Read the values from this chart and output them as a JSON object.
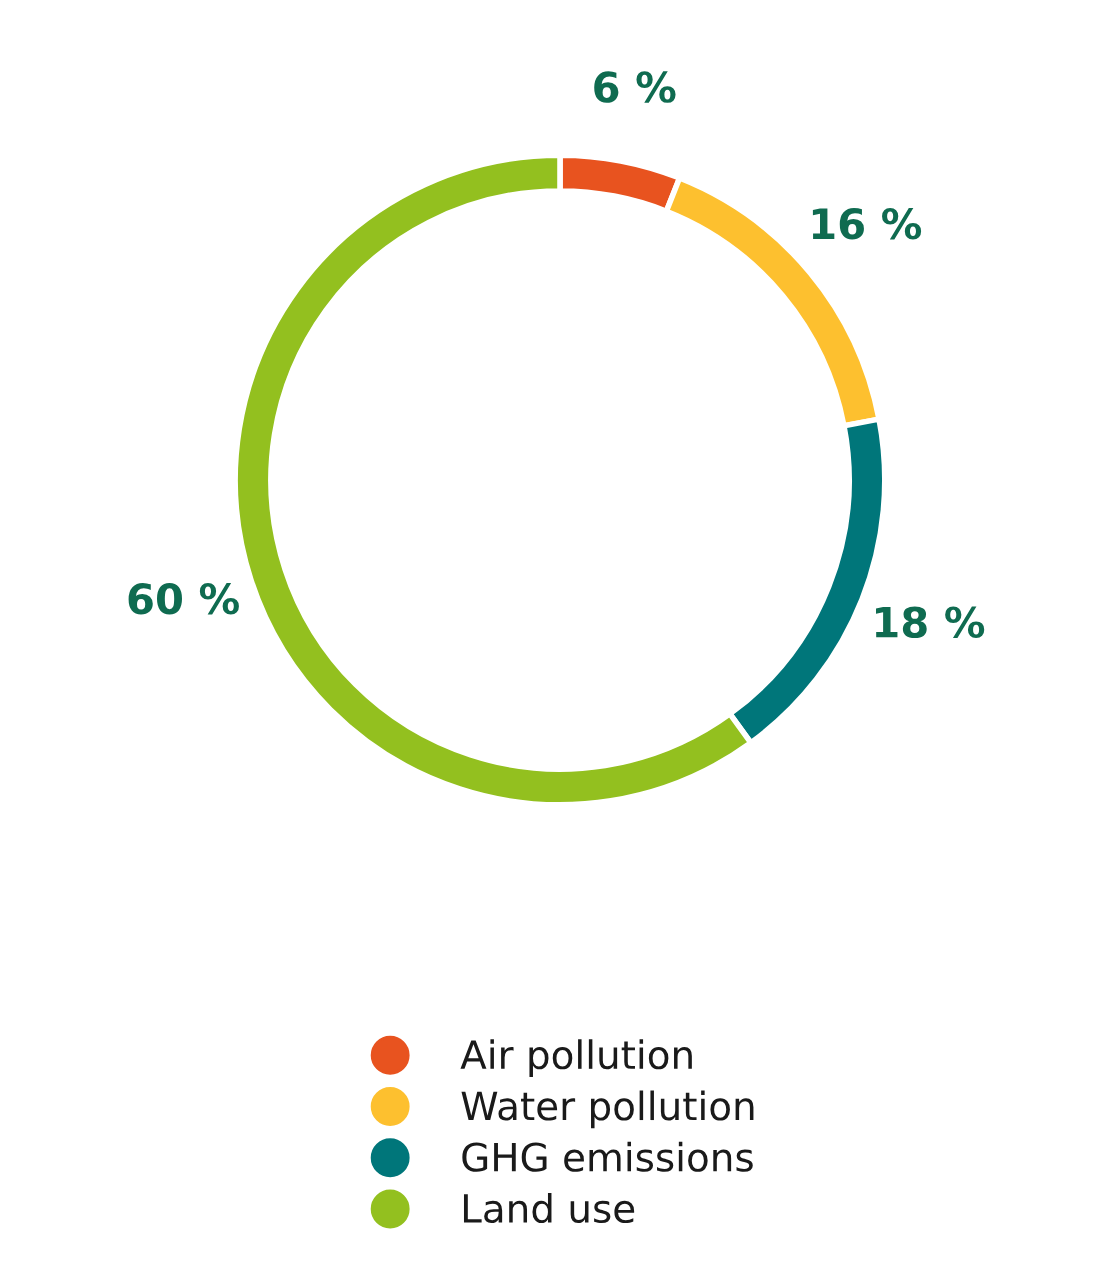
{
  "chart_data": {
    "type": "donut",
    "categories": [
      "Air pollution",
      "Water pollution",
      "GHG emissions",
      "Land use"
    ],
    "values": [
      6,
      16,
      18,
      60
    ],
    "colors": [
      "#e8531f",
      "#fdc02f",
      "#00767a",
      "#93c01f"
    ],
    "value_labels": [
      "6 %",
      "16 %",
      "18 %",
      "60 %"
    ],
    "legend": "bottom"
  }
}
